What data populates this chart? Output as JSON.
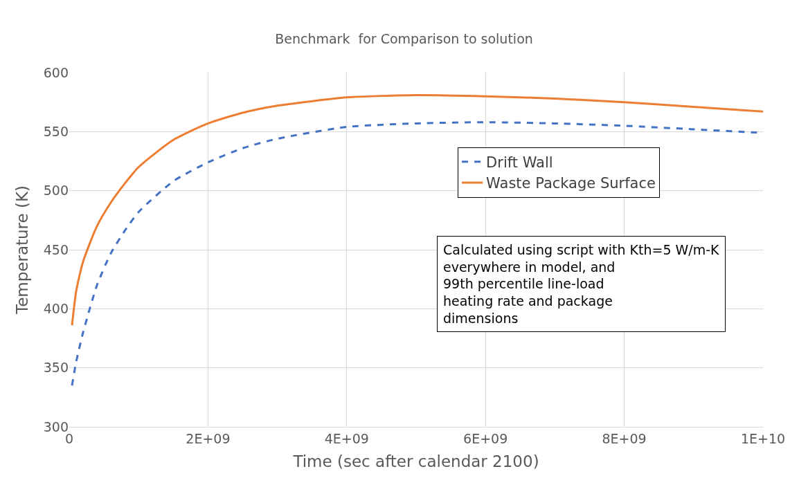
{
  "chart_data": {
    "type": "line",
    "title": "Benchmark  for Comparison to solution",
    "xlabel": "Time (sec after calendar 2100)",
    "ylabel": "Temperature (K)",
    "xlim": [
      0,
      10000000000
    ],
    "xticks": [
      0,
      {
        "value": 2000000000,
        "label": "2E+09"
      },
      {
        "value": 4000000000,
        "label": "4E+09"
      },
      {
        "value": 6000000000,
        "label": "6E+09"
      },
      {
        "value": 8000000000,
        "label": "8E+09"
      },
      {
        "value": 10000000000,
        "label": "1E+10"
      }
    ],
    "ylim": [
      300,
      600
    ],
    "yticks": [
      300,
      350,
      400,
      450,
      500,
      550,
      600
    ],
    "grid": true,
    "legend": "top right",
    "x": [
      40000000,
      100000000,
      200000000,
      400000000,
      600000000,
      800000000,
      1000000000,
      1500000000,
      2000000000,
      2500000000,
      3000000000,
      4000000000,
      5000000000,
      6000000000,
      7000000000,
      8000000000,
      9000000000,
      10000000000
    ],
    "series": [
      {
        "name": "Drift Wall",
        "color": "#4472c4",
        "line_style": "dashed",
        "values": [
          335,
          355,
          380,
          420,
          447,
          466,
          482,
          508,
          524,
          536,
          544,
          554,
          557,
          558,
          557,
          555,
          552,
          549
        ]
      },
      {
        "name": "Waste Package Surface",
        "color": "#ed7d31",
        "line_style": "solid",
        "values": [
          386,
          415,
          440,
          470,
          490,
          506,
          520,
          543,
          557,
          566,
          572,
          579,
          581,
          580,
          578,
          575,
          571,
          567
        ]
      }
    ],
    "annotations": [
      "Calculated using script with Kth=5 W/m-K\neverywhere in model, and\n99th percentile line-load\nheating rate and package\ndimensions"
    ]
  }
}
